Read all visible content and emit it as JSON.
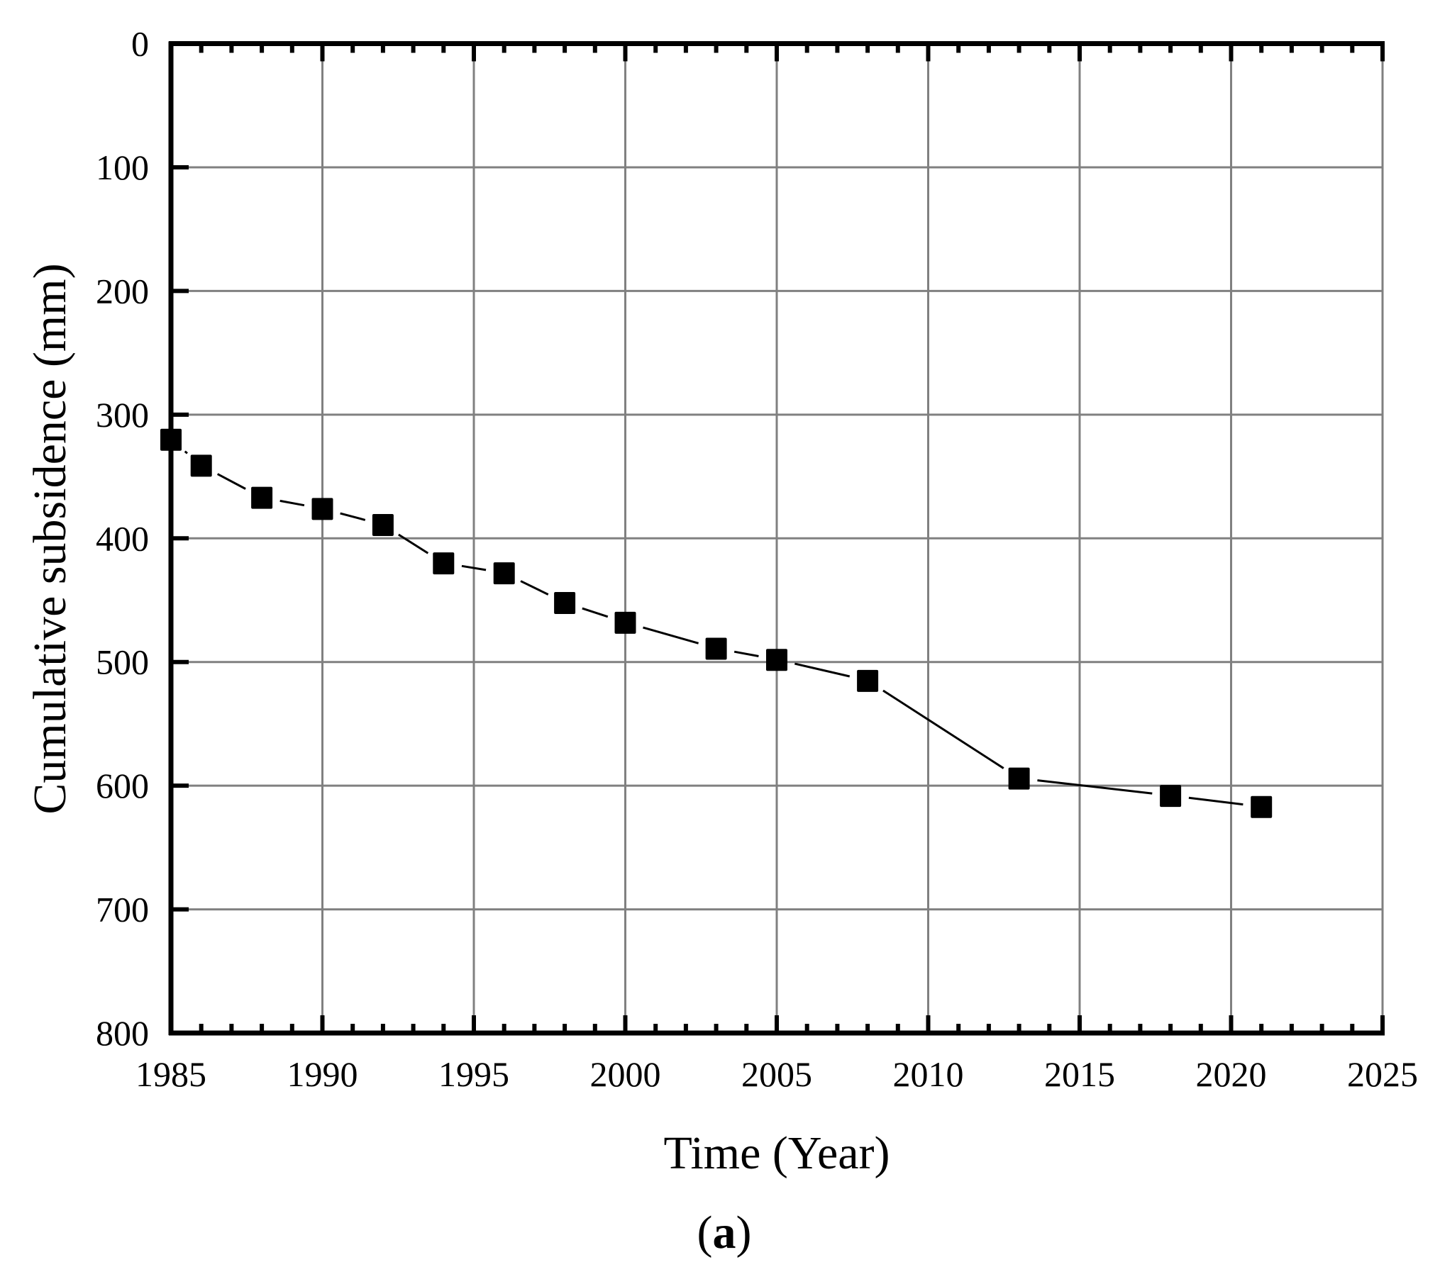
{
  "chart_data": {
    "type": "line",
    "title": "",
    "panel_label": "(a)",
    "panel_label_parts": {
      "open": "(",
      "letter": "a",
      "close": ")"
    },
    "xlabel": "Time (Year)",
    "ylabel": "Cumulative subsidence (mm)",
    "xlim": [
      1985,
      2025
    ],
    "ylim": [
      800,
      0
    ],
    "y_inverted": true,
    "grid": true,
    "legend": null,
    "x_ticks": [
      1985,
      1990,
      1995,
      2000,
      2005,
      2010,
      2015,
      2020,
      2025
    ],
    "x_tick_labels": [
      "1985",
      "1990",
      "1995",
      "2000",
      "2005",
      "2010",
      "2015",
      "2020",
      "2025"
    ],
    "x_minor_step": 1,
    "y_ticks": [
      0,
      100,
      200,
      300,
      400,
      500,
      600,
      700,
      800
    ],
    "y_tick_labels": [
      "0",
      "100",
      "200",
      "300",
      "400",
      "500",
      "600",
      "700",
      "800"
    ],
    "marker": "square",
    "colors": {
      "series": "#000000",
      "grid": "#808080",
      "axis": "#000000"
    },
    "x": [
      1985,
      1986,
      1988,
      1990,
      1992,
      1994,
      1996,
      1998,
      2000,
      2003,
      2005,
      2008,
      2013,
      2018,
      2021
    ],
    "series": [
      {
        "name": "Cumulative subsidence",
        "values": [
          320,
          341,
          367,
          376,
          389,
          420,
          428,
          452,
          468,
          489,
          498,
          515,
          594,
          608,
          617
        ]
      }
    ]
  }
}
